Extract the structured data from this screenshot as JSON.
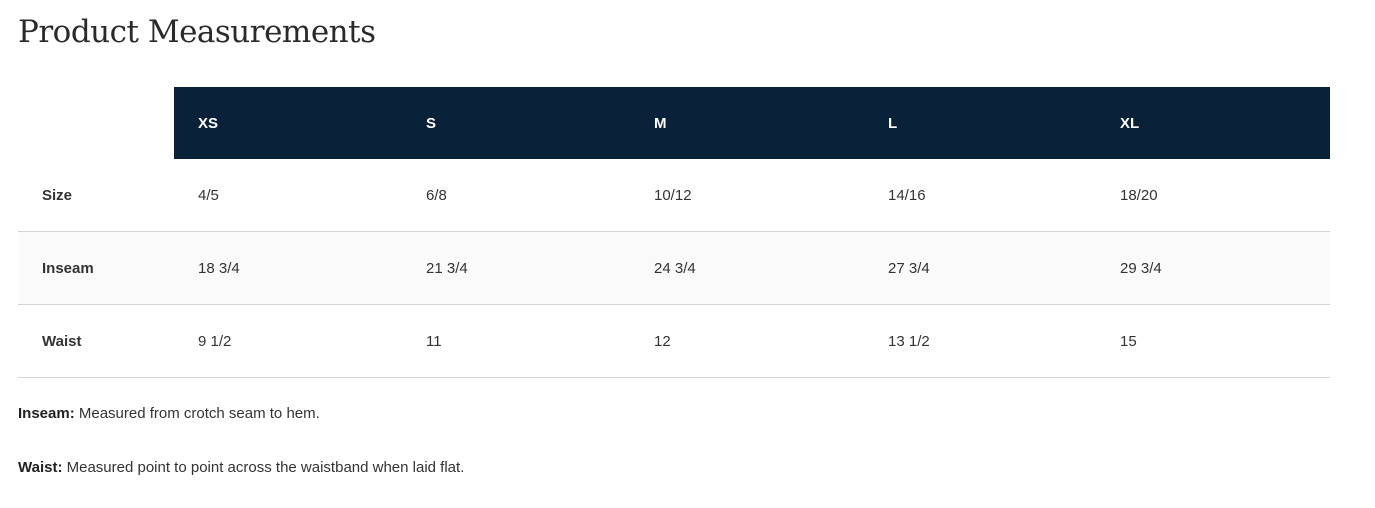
{
  "title": "Product Measurements",
  "table": {
    "headers": [
      "XS",
      "S",
      "M",
      "L",
      "XL"
    ],
    "rows": [
      {
        "label": "Size",
        "values": [
          "4/5",
          "6/8",
          "10/12",
          "14/16",
          "18/20"
        ]
      },
      {
        "label": "Inseam",
        "values": [
          "18 3/4",
          "21 3/4",
          "24 3/4",
          "27 3/4",
          "29 3/4"
        ]
      },
      {
        "label": "Waist",
        "values": [
          "9 1/2",
          "11",
          "12",
          "13 1/2",
          "15"
        ]
      }
    ]
  },
  "notes": [
    {
      "term": "Inseam:",
      "text": " Measured from crotch seam to hem."
    },
    {
      "term": "Waist:",
      "text": " Measured point to point across the waistband when laid flat."
    }
  ],
  "colors": {
    "header_bg": "#0a2239",
    "header_text": "#ffffff",
    "alt_row_bg": "#fafafa",
    "divider": "#d4d4d4"
  }
}
